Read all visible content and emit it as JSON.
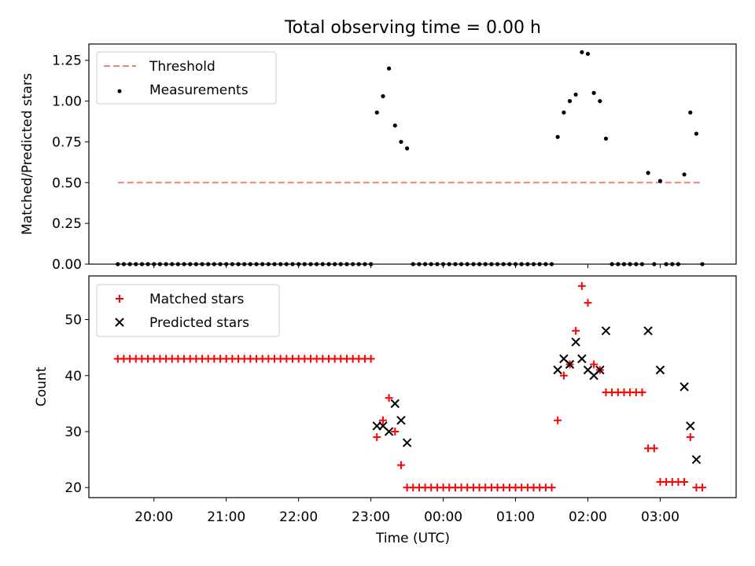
{
  "chart_data": [
    {
      "type": "scatter",
      "title": "Total observing time = 0.00 h",
      "xlabel": "",
      "ylabel": "Matched/Predicted stars",
      "ylim": [
        0.0,
        1.35
      ],
      "yticks": [
        "0.00",
        "0.25",
        "0.50",
        "0.75",
        "1.00",
        "1.25"
      ],
      "ytick_values": [
        0.0,
        0.25,
        0.5,
        0.75,
        1.0,
        1.25
      ],
      "xlim_hours": [
        19.1,
        28.05
      ],
      "legend_placement": "upper-left",
      "series": [
        {
          "name": "Threshold",
          "kind": "dashed-line",
          "color": "#f08080",
          "points": [
            [
              19.5,
              0.5
            ],
            [
              27.55,
              0.5
            ]
          ]
        },
        {
          "name": "Measurements",
          "kind": "dots",
          "color": "#000000",
          "points": [
            [
              19.5,
              0
            ],
            [
              19.583,
              0
            ],
            [
              19.667,
              0
            ],
            [
              19.75,
              0
            ],
            [
              19.833,
              0
            ],
            [
              19.917,
              0
            ],
            [
              20.0,
              0
            ],
            [
              20.083,
              0
            ],
            [
              20.167,
              0
            ],
            [
              20.25,
              0
            ],
            [
              20.333,
              0
            ],
            [
              20.417,
              0
            ],
            [
              20.5,
              0
            ],
            [
              20.583,
              0
            ],
            [
              20.667,
              0
            ],
            [
              20.75,
              0
            ],
            [
              20.833,
              0
            ],
            [
              20.917,
              0
            ],
            [
              21.0,
              0
            ],
            [
              21.083,
              0
            ],
            [
              21.167,
              0
            ],
            [
              21.25,
              0
            ],
            [
              21.333,
              0
            ],
            [
              21.417,
              0
            ],
            [
              21.5,
              0
            ],
            [
              21.583,
              0
            ],
            [
              21.667,
              0
            ],
            [
              21.75,
              0
            ],
            [
              21.833,
              0
            ],
            [
              21.917,
              0
            ],
            [
              22.0,
              0
            ],
            [
              22.083,
              0
            ],
            [
              22.167,
              0
            ],
            [
              22.25,
              0
            ],
            [
              22.333,
              0
            ],
            [
              22.417,
              0
            ],
            [
              22.5,
              0
            ],
            [
              22.583,
              0
            ],
            [
              22.667,
              0
            ],
            [
              22.75,
              0
            ],
            [
              22.833,
              0
            ],
            [
              22.917,
              0
            ],
            [
              23.0,
              0
            ],
            [
              23.083,
              0.93
            ],
            [
              23.167,
              1.03
            ],
            [
              23.25,
              1.2
            ],
            [
              23.333,
              0.85
            ],
            [
              23.417,
              0.75
            ],
            [
              23.5,
              0.71
            ],
            [
              23.583,
              0
            ],
            [
              23.667,
              0
            ],
            [
              23.75,
              0
            ],
            [
              23.833,
              0
            ],
            [
              23.917,
              0
            ],
            [
              24.0,
              0
            ],
            [
              24.083,
              0
            ],
            [
              24.167,
              0
            ],
            [
              24.25,
              0
            ],
            [
              24.333,
              0
            ],
            [
              24.417,
              0
            ],
            [
              24.5,
              0
            ],
            [
              24.583,
              0
            ],
            [
              24.667,
              0
            ],
            [
              24.75,
              0
            ],
            [
              24.833,
              0
            ],
            [
              24.917,
              0
            ],
            [
              25.0,
              0
            ],
            [
              25.083,
              0
            ],
            [
              25.167,
              0
            ],
            [
              25.25,
              0
            ],
            [
              25.333,
              0
            ],
            [
              25.417,
              0
            ],
            [
              25.5,
              0
            ],
            [
              25.583,
              0.78
            ],
            [
              25.667,
              0.93
            ],
            [
              25.75,
              1.0
            ],
            [
              25.833,
              1.04
            ],
            [
              25.917,
              1.3
            ],
            [
              26.0,
              1.29
            ],
            [
              26.083,
              1.05
            ],
            [
              26.167,
              1.0
            ],
            [
              26.25,
              0.77
            ],
            [
              26.333,
              0
            ],
            [
              26.417,
              0
            ],
            [
              26.5,
              0
            ],
            [
              26.583,
              0
            ],
            [
              26.667,
              0
            ],
            [
              26.75,
              0
            ],
            [
              26.833,
              0.56
            ],
            [
              26.917,
              0
            ],
            [
              27.0,
              0.51
            ],
            [
              27.083,
              0
            ],
            [
              27.167,
              0
            ],
            [
              27.25,
              0
            ],
            [
              27.333,
              0.55
            ],
            [
              27.417,
              0.93
            ],
            [
              27.5,
              0.8
            ],
            [
              27.583,
              0
            ]
          ]
        }
      ]
    },
    {
      "type": "scatter",
      "xlabel": "Time (UTC)",
      "ylabel": "Count",
      "ylim": [
        18.2,
        57.8
      ],
      "yticks": [
        "20",
        "30",
        "40",
        "50"
      ],
      "ytick_values": [
        20,
        30,
        40,
        50
      ],
      "xlim_hours": [
        19.1,
        28.05
      ],
      "xticks": [
        "20:00",
        "21:00",
        "22:00",
        "23:00",
        "00:00",
        "01:00",
        "02:00",
        "03:00"
      ],
      "xtick_hours": [
        20,
        21,
        22,
        23,
        24,
        25,
        26,
        27
      ],
      "legend_placement": "upper-left",
      "series": [
        {
          "name": "Matched stars",
          "kind": "plus",
          "color": "#ff0000",
          "points": [
            [
              19.5,
              43
            ],
            [
              19.583,
              43
            ],
            [
              19.667,
              43
            ],
            [
              19.75,
              43
            ],
            [
              19.833,
              43
            ],
            [
              19.917,
              43
            ],
            [
              20.0,
              43
            ],
            [
              20.083,
              43
            ],
            [
              20.167,
              43
            ],
            [
              20.25,
              43
            ],
            [
              20.333,
              43
            ],
            [
              20.417,
              43
            ],
            [
              20.5,
              43
            ],
            [
              20.583,
              43
            ],
            [
              20.667,
              43
            ],
            [
              20.75,
              43
            ],
            [
              20.833,
              43
            ],
            [
              20.917,
              43
            ],
            [
              21.0,
              43
            ],
            [
              21.083,
              43
            ],
            [
              21.167,
              43
            ],
            [
              21.25,
              43
            ],
            [
              21.333,
              43
            ],
            [
              21.417,
              43
            ],
            [
              21.5,
              43
            ],
            [
              21.583,
              43
            ],
            [
              21.667,
              43
            ],
            [
              21.75,
              43
            ],
            [
              21.833,
              43
            ],
            [
              21.917,
              43
            ],
            [
              22.0,
              43
            ],
            [
              22.083,
              43
            ],
            [
              22.167,
              43
            ],
            [
              22.25,
              43
            ],
            [
              22.333,
              43
            ],
            [
              22.417,
              43
            ],
            [
              22.5,
              43
            ],
            [
              22.583,
              43
            ],
            [
              22.667,
              43
            ],
            [
              22.75,
              43
            ],
            [
              22.833,
              43
            ],
            [
              22.917,
              43
            ],
            [
              23.0,
              43
            ],
            [
              23.083,
              29
            ],
            [
              23.167,
              32
            ],
            [
              23.25,
              36
            ],
            [
              23.333,
              30
            ],
            [
              23.417,
              24
            ],
            [
              23.5,
              20
            ],
            [
              23.583,
              20
            ],
            [
              23.667,
              20
            ],
            [
              23.75,
              20
            ],
            [
              23.833,
              20
            ],
            [
              23.917,
              20
            ],
            [
              24.0,
              20
            ],
            [
              24.083,
              20
            ],
            [
              24.167,
              20
            ],
            [
              24.25,
              20
            ],
            [
              24.333,
              20
            ],
            [
              24.417,
              20
            ],
            [
              24.5,
              20
            ],
            [
              24.583,
              20
            ],
            [
              24.667,
              20
            ],
            [
              24.75,
              20
            ],
            [
              24.833,
              20
            ],
            [
              24.917,
              20
            ],
            [
              25.0,
              20
            ],
            [
              25.083,
              20
            ],
            [
              25.167,
              20
            ],
            [
              25.25,
              20
            ],
            [
              25.333,
              20
            ],
            [
              25.417,
              20
            ],
            [
              25.5,
              20
            ],
            [
              25.583,
              32
            ],
            [
              25.667,
              40
            ],
            [
              25.75,
              42
            ],
            [
              25.833,
              48
            ],
            [
              25.917,
              56
            ],
            [
              26.0,
              53
            ],
            [
              26.083,
              42
            ],
            [
              26.167,
              41
            ],
            [
              26.25,
              37
            ],
            [
              26.333,
              37
            ],
            [
              26.417,
              37
            ],
            [
              26.5,
              37
            ],
            [
              26.583,
              37
            ],
            [
              26.667,
              37
            ],
            [
              26.75,
              37
            ],
            [
              26.833,
              27
            ],
            [
              26.917,
              27
            ],
            [
              27.0,
              21
            ],
            [
              27.083,
              21
            ],
            [
              27.167,
              21
            ],
            [
              27.25,
              21
            ],
            [
              27.333,
              21
            ],
            [
              27.417,
              29
            ],
            [
              27.5,
              20
            ],
            [
              27.583,
              20
            ]
          ]
        },
        {
          "name": "Predicted stars",
          "kind": "x",
          "color": "#000000",
          "points": [
            [
              23.083,
              31
            ],
            [
              23.167,
              31
            ],
            [
              23.25,
              30
            ],
            [
              23.333,
              35
            ],
            [
              23.417,
              32
            ],
            [
              23.5,
              28
            ],
            [
              25.583,
              41
            ],
            [
              25.667,
              43
            ],
            [
              25.75,
              42
            ],
            [
              25.833,
              46
            ],
            [
              25.917,
              43
            ],
            [
              26.0,
              41
            ],
            [
              26.083,
              40
            ],
            [
              26.167,
              41
            ],
            [
              26.25,
              48
            ],
            [
              26.833,
              48
            ],
            [
              27.0,
              41
            ],
            [
              27.333,
              38
            ],
            [
              27.417,
              31
            ],
            [
              27.5,
              25
            ]
          ]
        }
      ]
    }
  ]
}
